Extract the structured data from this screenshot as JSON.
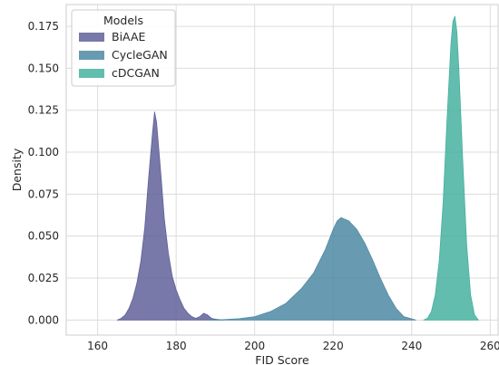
{
  "chart_data": {
    "type": "area",
    "xlabel": "FID Score",
    "ylabel": "Density",
    "xlim": [
      152,
      262
    ],
    "ylim": [
      -0.009,
      0.188
    ],
    "xticks": [
      160,
      180,
      200,
      220,
      240,
      260
    ],
    "yticks": [
      0.0,
      0.025,
      0.05,
      0.075,
      0.1,
      0.125,
      0.15,
      0.175
    ],
    "xtick_labels": [
      "160",
      "180",
      "200",
      "220",
      "240",
      "260"
    ],
    "ytick_labels": [
      "0.000",
      "0.025",
      "0.050",
      "0.075",
      "0.100",
      "0.125",
      "0.150",
      "0.175"
    ],
    "grid": true,
    "legend": {
      "title": "Models",
      "placement": "top-left",
      "entries": [
        "BiAAE",
        "CycleGAN",
        "cDCGAN"
      ]
    },
    "series": [
      {
        "name": "BiAAE",
        "color": "#60609a",
        "x": [
          165,
          166,
          167,
          168,
          169,
          170,
          171,
          172,
          173,
          174,
          174.5,
          175,
          176,
          177,
          178,
          179,
          180,
          181,
          182,
          183,
          184,
          185,
          186,
          187,
          188,
          189,
          190,
          191,
          192
        ],
        "y": [
          0.0,
          0.001,
          0.003,
          0.007,
          0.013,
          0.022,
          0.035,
          0.055,
          0.085,
          0.112,
          0.124,
          0.118,
          0.09,
          0.06,
          0.04,
          0.026,
          0.018,
          0.012,
          0.007,
          0.004,
          0.002,
          0.001,
          0.002,
          0.004,
          0.003,
          0.001,
          0.0005,
          0.0002,
          0.0
        ]
      },
      {
        "name": "CycleGAN",
        "color": "#4e8aa3",
        "x": [
          188,
          192,
          196,
          200,
          204,
          208,
          212,
          215,
          218,
          220,
          221,
          222,
          224,
          226,
          228,
          230,
          232,
          234,
          236,
          238,
          241
        ],
        "y": [
          0.0,
          0.0002,
          0.0008,
          0.002,
          0.005,
          0.01,
          0.019,
          0.028,
          0.042,
          0.054,
          0.059,
          0.061,
          0.059,
          0.054,
          0.046,
          0.036,
          0.025,
          0.015,
          0.007,
          0.002,
          0.0
        ]
      },
      {
        "name": "cDCGAN",
        "color": "#47b1a0",
        "x": [
          243,
          244,
          245,
          246,
          247,
          248,
          249,
          250,
          250.5,
          251,
          251.5,
          252,
          253,
          254,
          255,
          256,
          257
        ],
        "y": [
          0.0,
          0.001,
          0.005,
          0.015,
          0.035,
          0.07,
          0.12,
          0.165,
          0.178,
          0.181,
          0.172,
          0.15,
          0.095,
          0.045,
          0.015,
          0.003,
          0.0
        ]
      }
    ]
  }
}
